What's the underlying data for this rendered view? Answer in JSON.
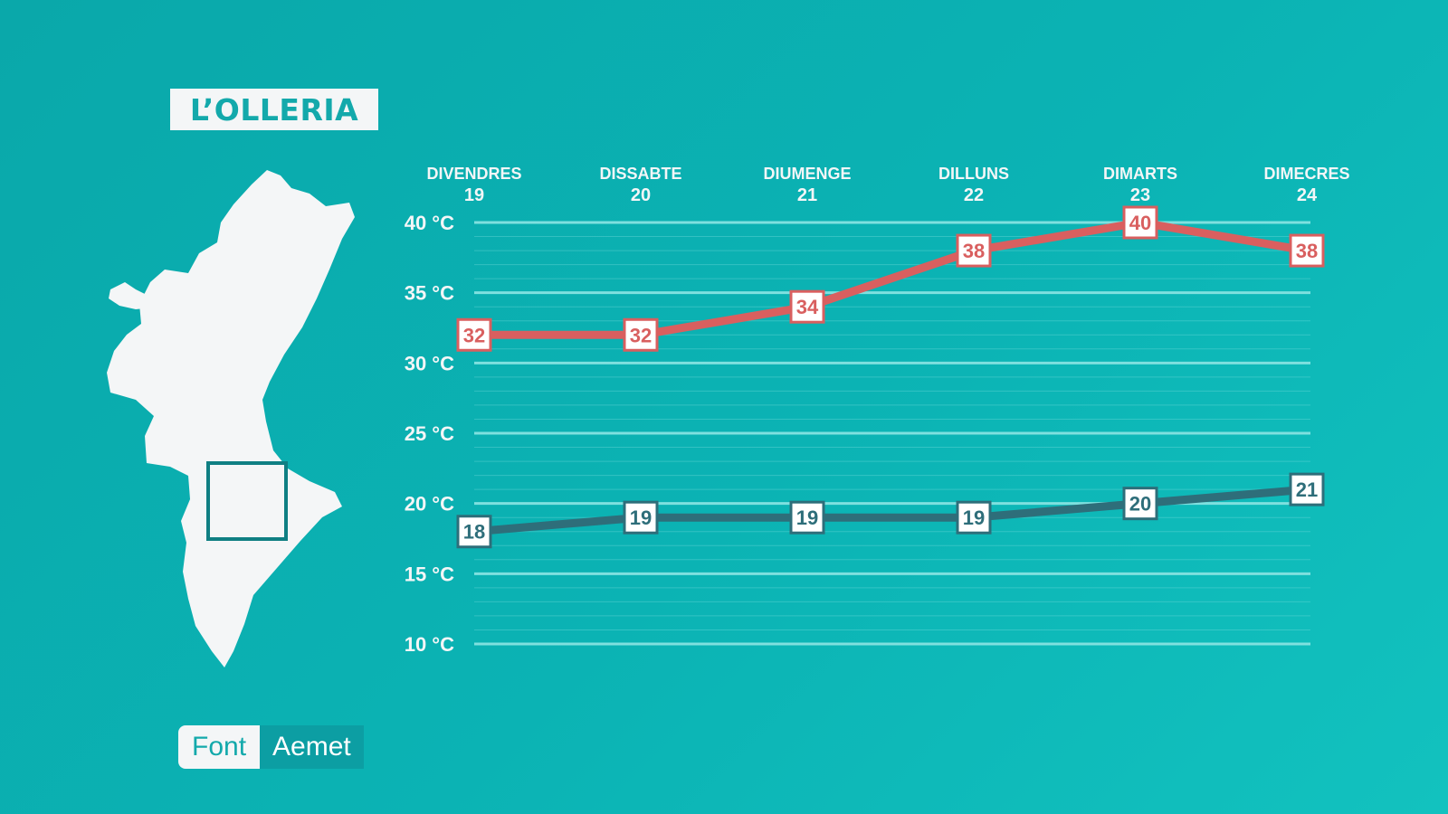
{
  "header": {
    "town": "L’OLLERIA"
  },
  "source": {
    "label": "Font",
    "value": "Aemet"
  },
  "colors": {
    "max": "#d95f5f",
    "min": "#2e6e7a",
    "grid": "#7fe0df",
    "text": "#f4f6f7"
  },
  "chart_data": {
    "type": "line",
    "categories": [
      {
        "day": "DIVENDRES",
        "date": "19"
      },
      {
        "day": "DISSABTE",
        "date": "20"
      },
      {
        "day": "DIUMENGE",
        "date": "21"
      },
      {
        "day": "DILLUNS",
        "date": "22"
      },
      {
        "day": "DIMARTS",
        "date": "23"
      },
      {
        "day": "DIMECRES",
        "date": "24"
      }
    ],
    "series": [
      {
        "key": "max",
        "values": [
          32,
          32,
          34,
          38,
          40,
          38
        ]
      },
      {
        "key": "min",
        "values": [
          18,
          19,
          19,
          19,
          20,
          21
        ]
      }
    ],
    "yticks": [
      40,
      35,
      30,
      25,
      20,
      15,
      10
    ],
    "ytick_suffix": " °C",
    "ylim": [
      10,
      40
    ],
    "grid": true
  }
}
